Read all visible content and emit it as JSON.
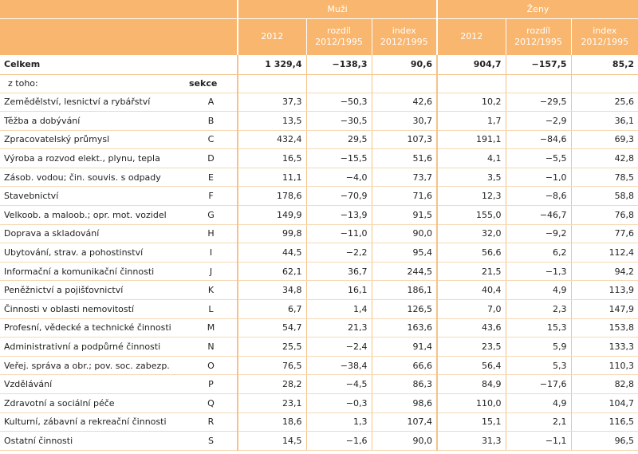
{
  "header": {
    "group_men": "Muži",
    "group_women": "Ženy",
    "col_2012": "2012",
    "col_diff": "rozdíl 2012/1995",
    "col_index": "index 2012/1995"
  },
  "total": {
    "label": "Celkem",
    "men": [
      "1 329,4",
      "−138,3",
      "90,6"
    ],
    "women": [
      "904,7",
      "−157,5",
      "85,2"
    ]
  },
  "subheader": {
    "of_which": "z toho:",
    "section": "sekce"
  },
  "rows": [
    {
      "label": "Zemědělství, lesnictví a rybářství",
      "sec": "A",
      "men": [
        "37,3",
        "−50,3",
        "42,6"
      ],
      "women": [
        "10,2",
        "−29,5",
        "25,6"
      ]
    },
    {
      "label": "Těžba a dobývání",
      "sec": "B",
      "men": [
        "13,5",
        "−30,5",
        "30,7"
      ],
      "women": [
        "1,7",
        "−2,9",
        "36,1"
      ]
    },
    {
      "label": "Zpracovatelský průmysl",
      "sec": "C",
      "men": [
        "432,4",
        "29,5",
        "107,3"
      ],
      "women": [
        "191,1",
        "−84,6",
        "69,3"
      ]
    },
    {
      "label": "Výroba a rozvod elekt., plynu, tepla",
      "sec": "D",
      "men": [
        "16,5",
        "−15,5",
        "51,6"
      ],
      "women": [
        "4,1",
        "−5,5",
        "42,8"
      ]
    },
    {
      "label": "Zásob. vodou; čin. souvis. s odpady",
      "sec": "E",
      "men": [
        "11,1",
        "−4,0",
        "73,7"
      ],
      "women": [
        "3,5",
        "−1,0",
        "78,5"
      ]
    },
    {
      "label": "Stavebnictví",
      "sec": "F",
      "men": [
        "178,6",
        "−70,9",
        "71,6"
      ],
      "women": [
        "12,3",
        "−8,6",
        "58,8"
      ]
    },
    {
      "label": "Velkoob. a maloob.; opr. mot. vozidel",
      "sec": "G",
      "men": [
        "149,9",
        "−13,9",
        "91,5"
      ],
      "women": [
        "155,0",
        "−46,7",
        "76,8"
      ]
    },
    {
      "label": "Doprava a skladování",
      "sec": "H",
      "men": [
        "99,8",
        "−11,0",
        "90,0"
      ],
      "women": [
        "32,0",
        "−9,2",
        "77,6"
      ]
    },
    {
      "label": "Ubytování, strav. a pohostinství",
      "sec": "I",
      "men": [
        "44,5",
        "−2,2",
        "95,4"
      ],
      "women": [
        "56,6",
        "6,2",
        "112,4"
      ]
    },
    {
      "label": "Informační a komunikační činnosti",
      "sec": "J",
      "men": [
        "62,1",
        "36,7",
        "244,5"
      ],
      "women": [
        "21,5",
        "−1,3",
        "94,2"
      ]
    },
    {
      "label": "Peněžnictví a pojišťovnictví",
      "sec": "K",
      "men": [
        "34,8",
        "16,1",
        "186,1"
      ],
      "women": [
        "40,4",
        "4,9",
        "113,9"
      ]
    },
    {
      "label": "Činnosti v oblasti nemovitostí",
      "sec": "L",
      "men": [
        "6,7",
        "1,4",
        "126,5"
      ],
      "women": [
        "7,0",
        "2,3",
        "147,9"
      ]
    },
    {
      "label": "Profesní, vědecké a technické činnosti",
      "sec": "M",
      "men": [
        "54,7",
        "21,3",
        "163,6"
      ],
      "women": [
        "43,6",
        "15,3",
        "153,8"
      ]
    },
    {
      "label": "Administrativní a podpůrné činnosti",
      "sec": "N",
      "men": [
        "25,5",
        "−2,4",
        "91,4"
      ],
      "women": [
        "23,5",
        "5,9",
        "133,3"
      ]
    },
    {
      "label": "Veřej. správa a obr.; pov. soc. zabezp.",
      "sec": "O",
      "men": [
        "76,5",
        "−38,4",
        "66,6"
      ],
      "women": [
        "56,4",
        "5,3",
        "110,3"
      ]
    },
    {
      "label": "Vzdělávání",
      "sec": "P",
      "men": [
        "28,2",
        "−4,5",
        "86,3"
      ],
      "women": [
        "84,9",
        "−17,6",
        "82,8"
      ]
    },
    {
      "label": "Zdravotní a sociální péče",
      "sec": "Q",
      "men": [
        "23,1",
        "−0,3",
        "98,6"
      ],
      "women": [
        "110,0",
        "4,9",
        "104,7"
      ]
    },
    {
      "label": "Kulturní, zábavní a rekreační činnosti",
      "sec": "R",
      "men": [
        "18,6",
        "1,3",
        "107,4"
      ],
      "women": [
        "15,1",
        "2,1",
        "116,5"
      ]
    },
    {
      "label": "Ostatní činnosti",
      "sec": "S",
      "men": [
        "14,5",
        "−1,6",
        "90,0"
      ],
      "women": [
        "31,3",
        "−1,1",
        "96,5"
      ]
    }
  ]
}
